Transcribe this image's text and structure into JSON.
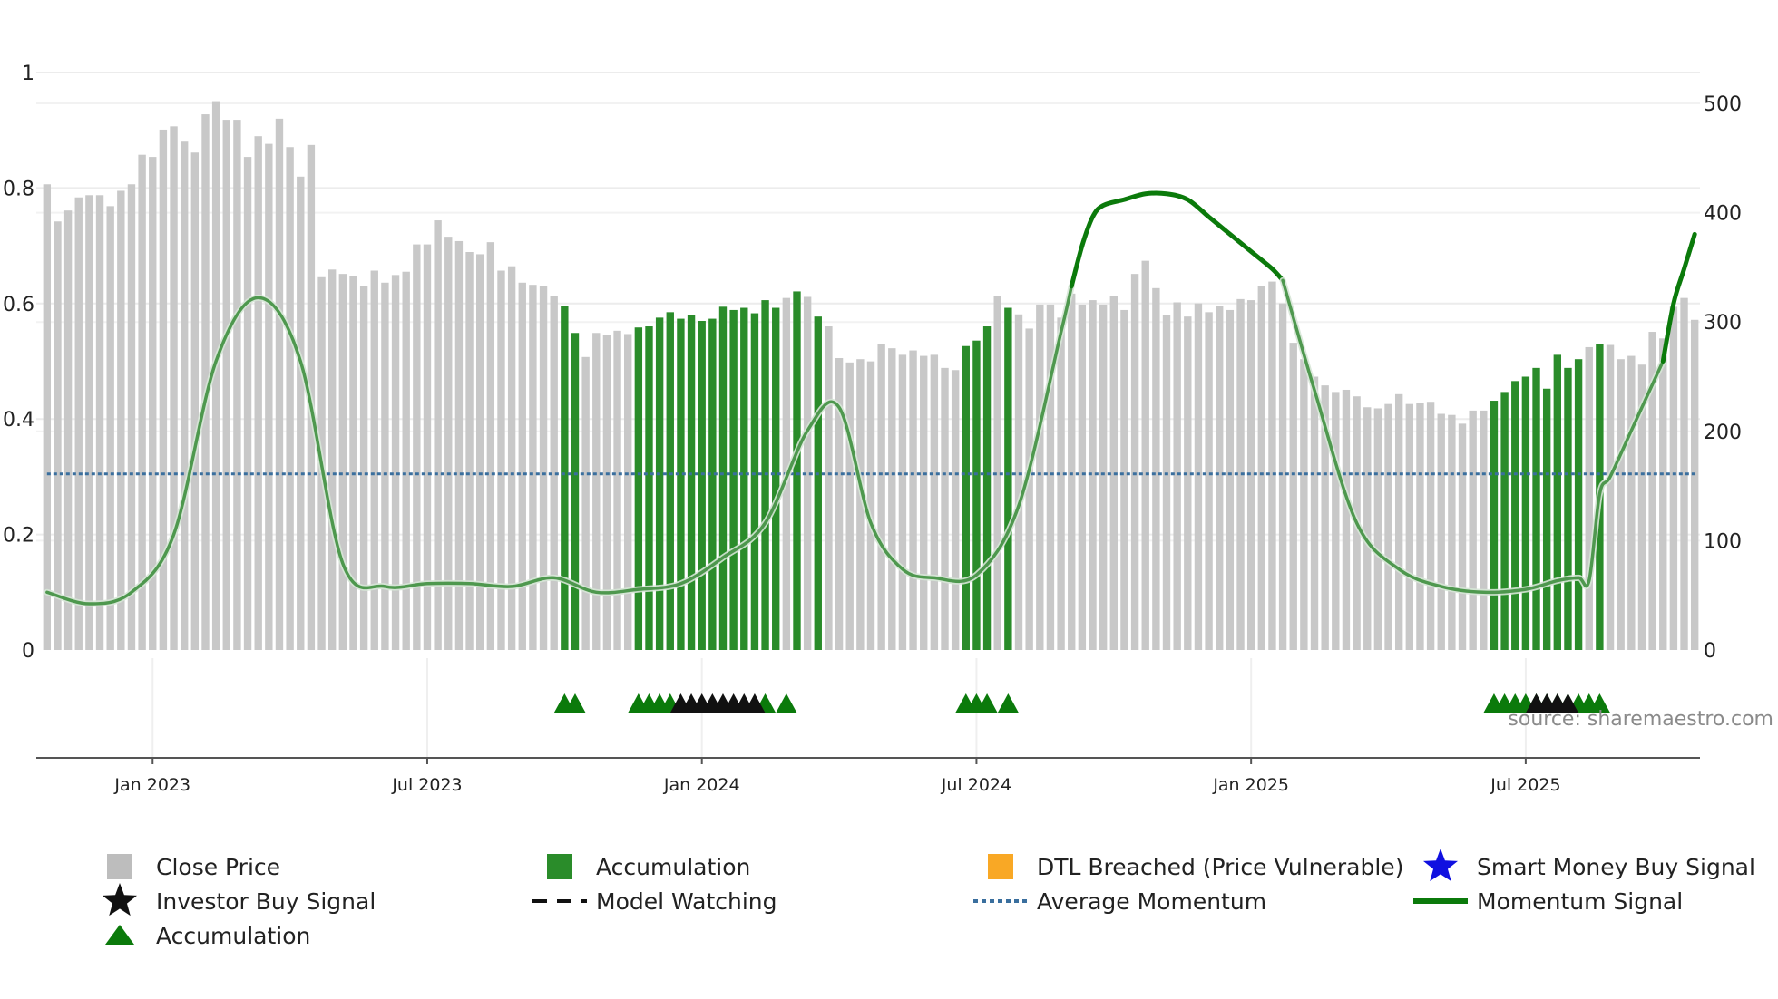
{
  "chart_data": {
    "type": "bar",
    "title": "",
    "source_text": "source: sharemaestro.com",
    "left_axis": {
      "range": [
        0,
        1
      ],
      "ticks": [
        0,
        0.2,
        0.4,
        0.6,
        0.8,
        1
      ],
      "tick_labels": [
        "0",
        "0.2",
        "0.4",
        "0.6",
        "0.8",
        "1"
      ]
    },
    "right_axis": {
      "range": [
        0,
        500
      ],
      "ticks": [
        0,
        100,
        200,
        300,
        400,
        500
      ],
      "tick_labels": [
        "0",
        "100",
        "200",
        "300",
        "400",
        "500"
      ]
    },
    "x_axis": {
      "tick_labels": [
        "Jan 2023",
        "Jul 2023",
        "Jan 2024",
        "Jul 2024",
        "Jan 2025",
        "Jul 2025"
      ],
      "tick_weeks": [
        10,
        36,
        62,
        88,
        114,
        140
      ]
    },
    "weeks_count": 157,
    "series": [
      {
        "name": "Close Price",
        "color": "#c8c8c8",
        "values": [
          426,
          392,
          402,
          414,
          416,
          416,
          406,
          420,
          426,
          453,
          451,
          476,
          479,
          465,
          455,
          490,
          502,
          485,
          485,
          451,
          470,
          463,
          486,
          460,
          433,
          462,
          341,
          348,
          344,
          342,
          333,
          347,
          336,
          343,
          346,
          371,
          371,
          393,
          378,
          374,
          364,
          362,
          373,
          347,
          351,
          336,
          334,
          333,
          324,
          315,
          290,
          268,
          290,
          288,
          292,
          289,
          295,
          296,
          304,
          309,
          303,
          306,
          301,
          303,
          314,
          311,
          313,
          308,
          320,
          313,
          322,
          328,
          323,
          305,
          296,
          267,
          263,
          266,
          264,
          280,
          276,
          270,
          274,
          269,
          270,
          258,
          256,
          278,
          283,
          296,
          324,
          313,
          307,
          294,
          316,
          316,
          304,
          326,
          316,
          320,
          316,
          324,
          311,
          344,
          356,
          331,
          306,
          318,
          305,
          317,
          309,
          315,
          311,
          321,
          320,
          333,
          337,
          317,
          281,
          266,
          250,
          242,
          236,
          238,
          232,
          222,
          221,
          225,
          234,
          225,
          226,
          227,
          216,
          215,
          207,
          219,
          219,
          228,
          236,
          246,
          250,
          258,
          239,
          270,
          258,
          266,
          277,
          280,
          279,
          266,
          269,
          261,
          291,
          285,
          314,
          322,
          302
        ]
      },
      {
        "name": "Accumulation",
        "color": "#2a8c2a",
        "bar_weeks": [
          49,
          50,
          56,
          57,
          58,
          59,
          60,
          61,
          62,
          63,
          64,
          65,
          66,
          67,
          68,
          69,
          71,
          73,
          87,
          88,
          89,
          91,
          137,
          138,
          139,
          140,
          141,
          142,
          143,
          144,
          145,
          147
        ]
      },
      {
        "name": "Momentum Signal",
        "color": "#0b7a0b",
        "segments": [
          {
            "style": "faded",
            "x": [
              0,
              4,
              8,
              12,
              16,
              20,
              24,
              28,
              32,
              36,
              40,
              44,
              48,
              52,
              56,
              60,
              64,
              68,
              72,
              75,
              78,
              81,
              84,
              88,
              92,
              96,
              97
            ],
            "y": [
              0.1,
              0.08,
              0.1,
              0.2,
              0.5,
              0.61,
              0.5,
              0.15,
              0.11,
              0.115,
              0.115,
              0.11,
              0.125,
              0.1,
              0.105,
              0.115,
              0.16,
              0.22,
              0.38,
              0.42,
              0.22,
              0.14,
              0.125,
              0.13,
              0.25,
              0.55,
              0.63
            ]
          },
          {
            "style": "solid",
            "x": [
              97,
              98,
              99,
              100,
              102,
              104,
              106,
              108,
              110,
              112,
              114,
              116,
              117
            ],
            "y": [
              0.63,
              0.7,
              0.75,
              0.77,
              0.78,
              0.79,
              0.79,
              0.78,
              0.75,
              0.72,
              0.69,
              0.66,
              0.64
            ]
          },
          {
            "style": "faded",
            "x": [
              117,
              120,
              124,
              128,
              132,
              136,
              140,
              143,
              145,
              146,
              147,
              148,
              150,
              151,
              152,
              153
            ],
            "y": [
              0.64,
              0.45,
              0.22,
              0.14,
              0.11,
              0.1,
              0.105,
              0.12,
              0.125,
              0.12,
              0.27,
              0.3,
              0.38,
              0.42,
              0.46,
              0.5
            ]
          },
          {
            "style": "solid",
            "x": [
              153,
              154,
              155,
              156
            ],
            "y": [
              0.5,
              0.6,
              0.66,
              0.72
            ]
          }
        ]
      },
      {
        "name": "Average Momentum",
        "color": "#3a6f9e",
        "value": 0.305
      }
    ],
    "markers": [
      {
        "type": "accumulation-triangle",
        "color": "#0b7a0b",
        "weeks": [
          49,
          50,
          56,
          57,
          58,
          59,
          68,
          70,
          87,
          88,
          89,
          91,
          137,
          138,
          139,
          140,
          141,
          142,
          143,
          144,
          145,
          146,
          147
        ]
      },
      {
        "type": "investor-buy-triangle",
        "color": "#111111",
        "weeks": [
          60,
          61,
          62,
          63,
          64,
          65,
          66,
          67,
          141,
          142,
          143,
          144
        ]
      }
    ],
    "legend": [
      {
        "label": "Close Price",
        "symbol": "square",
        "color": "#bdbdbd"
      },
      {
        "label": "Accumulation",
        "symbol": "square",
        "color": "#2a8c2a"
      },
      {
        "label": "DTL Breached (Price Vulnerable)",
        "symbol": "square",
        "color": "#f9a825"
      },
      {
        "label": "Smart Money Buy Signal",
        "symbol": "star",
        "color": "#1010e0"
      },
      {
        "label": "Investor Buy Signal",
        "symbol": "star",
        "color": "#111111"
      },
      {
        "label": "Model Watching",
        "symbol": "dashed-line",
        "color": "#111111"
      },
      {
        "label": "Average Momentum",
        "symbol": "dotted-line",
        "color": "#3a6f9e"
      },
      {
        "label": "Momentum Signal",
        "symbol": "line",
        "color": "#0b7a0b"
      },
      {
        "label": "Accumulation",
        "symbol": "triangle",
        "color": "#0b7a0b"
      }
    ]
  }
}
